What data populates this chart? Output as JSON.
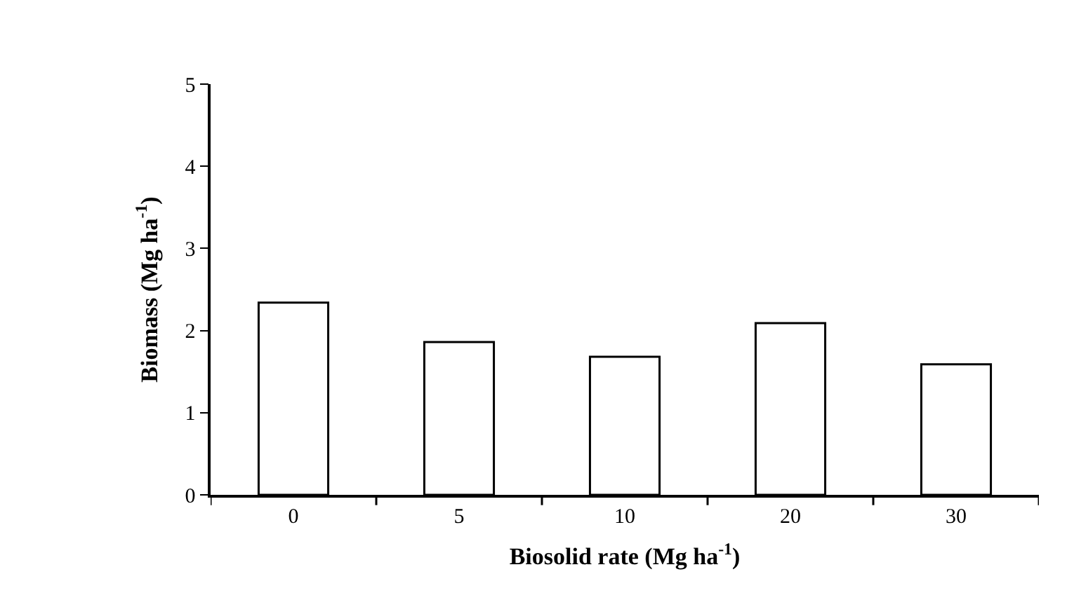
{
  "chart_data": {
    "type": "bar",
    "xlabel": "Biosolid rate (Mg ha$^{-1}$)",
    "ylabel": "Biomass (Mg ha$^{-1}$)",
    "categories": [
      "0",
      "5",
      "10",
      "20",
      "30"
    ],
    "values": [
      2.34,
      1.86,
      1.68,
      2.09,
      1.59
    ],
    "color": "#ffffff",
    "ylim": [
      0,
      5
    ],
    "yticks": [
      0,
      1,
      2,
      3,
      4,
      5
    ]
  }
}
